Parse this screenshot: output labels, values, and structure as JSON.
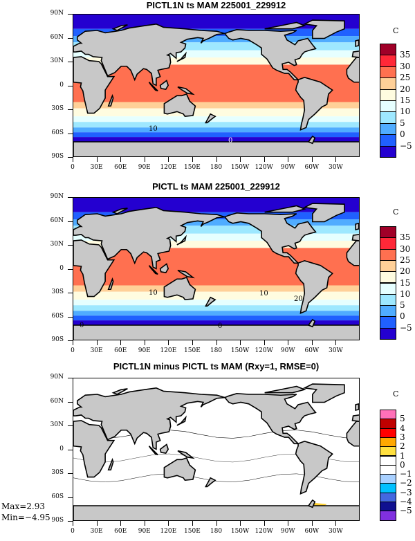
{
  "panels": [
    {
      "title": "PICTL1N ts MAM 225001_229912",
      "unit": "C",
      "colorbar_labels": [
        "35",
        "30",
        "25",
        "20",
        "15",
        "10",
        "5",
        "0",
        "−5"
      ],
      "colorbar_colors": [
        "#a00028",
        "#ff2838",
        "#ff7050",
        "#ffd098",
        "#fffce0",
        "#e6ffff",
        "#9ee8ff",
        "#50acff",
        "#2060ff",
        "#2400d0"
      ],
      "contour_labels": [
        "10",
        "0"
      ]
    },
    {
      "title": "PICTL ts MAM 225001_229912",
      "unit": "C",
      "colorbar_labels": [
        "35",
        "30",
        "25",
        "20",
        "15",
        "10",
        "5",
        "0",
        "−5"
      ],
      "colorbar_colors": [
        "#a00028",
        "#ff2838",
        "#ff7050",
        "#ffd098",
        "#fffce0",
        "#e6ffff",
        "#9ee8ff",
        "#50acff",
        "#2060ff",
        "#2400d0"
      ],
      "contour_labels": [
        "10",
        "10",
        "20",
        "0",
        "0"
      ]
    },
    {
      "title": "PICTL1N minus PICTL ts MAM (Rxy=1, RMSE=0)",
      "unit": "C",
      "colorbar_labels": [
        "5",
        "4",
        "3",
        "2",
        "1",
        "0",
        "−1",
        "−2",
        "−3",
        "−4",
        "−5"
      ],
      "colorbar_colors": [
        "#ff70b8",
        "#c00000",
        "#ff0000",
        "#ffa800",
        "#ffe040",
        "#ffffff",
        "#ffffff",
        "#a8d0ff",
        "#00c0ff",
        "#4468e0",
        "#101090",
        "#8030e0"
      ],
      "contour_labels": []
    }
  ],
  "axis": {
    "lat_labels": [
      "90N",
      "60N",
      "30N",
      "0",
      "30S",
      "60S",
      "90S"
    ],
    "lon_labels": [
      "0",
      "30E",
      "60E",
      "90E",
      "120E",
      "150E",
      "180",
      "150W",
      "120W",
      "90W",
      "60W",
      "30W"
    ]
  },
  "stats": {
    "max": "Max=2.93",
    "min": "Min=−4.95"
  }
}
